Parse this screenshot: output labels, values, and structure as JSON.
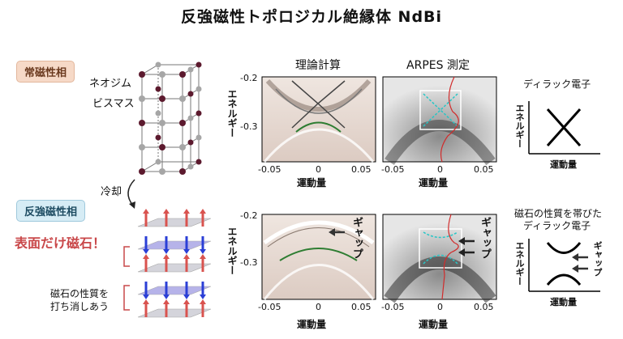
{
  "title": "反強磁性トポロジカル絶縁体 NdBi",
  "phases": {
    "para": "常磁性相",
    "afm": "反強磁性相"
  },
  "atoms": {
    "nd": "ネオジム",
    "bi": "ビスマス"
  },
  "cooling": "冷却",
  "surface_magnet": "表面だけ磁石！",
  "cancel_text_1": "磁石の性質を",
  "cancel_text_2": "打ち消しあう",
  "columns": {
    "theory": "理論計算",
    "arpes": "ARPES 測定"
  },
  "axes": {
    "energy": "エネルギー",
    "momentum": "運動量",
    "x_ticks": [
      "-0.05",
      "0",
      "0.05"
    ],
    "y_ticks": [
      "-0.2",
      "-0.3"
    ]
  },
  "gap_label": "ギャップ",
  "schematic": {
    "top_title": "ディラック電子",
    "bottom_title_1": "磁石の性質を帯びた",
    "bottom_title_2": "ディラック電子"
  },
  "colors": {
    "nd_atom": "#5c1a2e",
    "bi_atom": "#a6a6a6",
    "up_arrow": "#d9534f",
    "down_arrow": "#2b3fd6",
    "plane": "#7b76d8",
    "accent_red": "#c9484a"
  }
}
